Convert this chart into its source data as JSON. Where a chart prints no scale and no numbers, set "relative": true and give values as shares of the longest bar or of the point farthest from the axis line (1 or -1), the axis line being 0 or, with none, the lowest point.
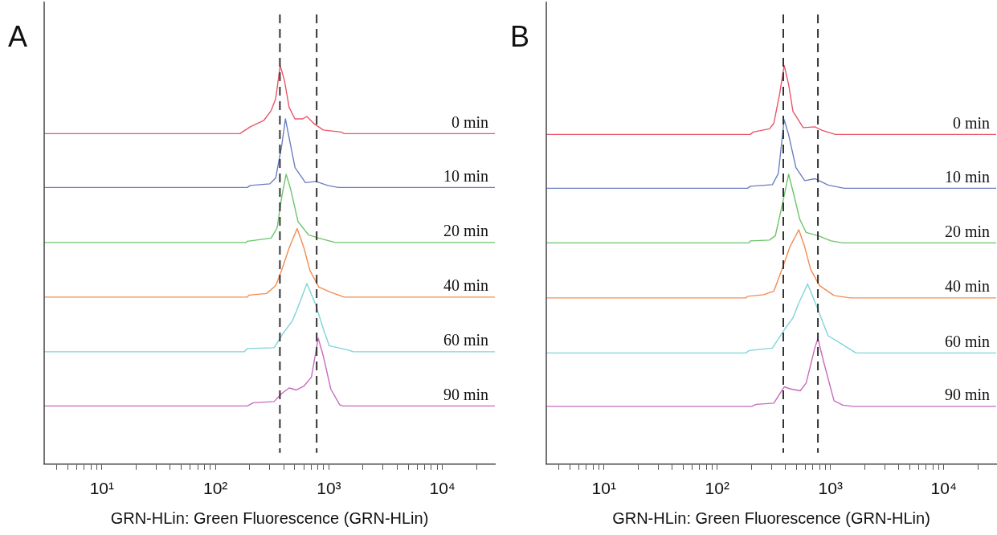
{
  "chart_data": [
    {
      "type": "line",
      "title": "A",
      "xlabel": "GRN-HLin: Green Fluorescence (GRN-HLin)",
      "log": "x",
      "relative": true,
      "grid": false,
      "legend": false,
      "marker": "none",
      "xlim": [
        3.1,
        29000
      ],
      "xticks": [
        {
          "value": 4,
          "label": null
        },
        {
          "value": 5,
          "label": null
        },
        {
          "value": 6,
          "label": null
        },
        {
          "value": 7,
          "label": null
        },
        {
          "value": 8,
          "label": null
        },
        {
          "value": 9,
          "label": null
        },
        {
          "value": 10,
          "label": "10¹"
        },
        {
          "value": 20,
          "label": null
        },
        {
          "value": 30,
          "label": null
        },
        {
          "value": 40,
          "label": null
        },
        {
          "value": 50,
          "label": null
        },
        {
          "value": 60,
          "label": null
        },
        {
          "value": 70,
          "label": null
        },
        {
          "value": 80,
          "label": null
        },
        {
          "value": 90,
          "label": null
        },
        {
          "value": 100,
          "label": "10²"
        },
        {
          "value": 200,
          "label": null
        },
        {
          "value": 300,
          "label": null
        },
        {
          "value": 400,
          "label": null
        },
        {
          "value": 500,
          "label": null
        },
        {
          "value": 600,
          "label": null
        },
        {
          "value": 700,
          "label": null
        },
        {
          "value": 800,
          "label": null
        },
        {
          "value": 900,
          "label": null
        },
        {
          "value": 1000,
          "label": "10³"
        },
        {
          "value": 2000,
          "label": null
        },
        {
          "value": 3000,
          "label": null
        },
        {
          "value": 4000,
          "label": null
        },
        {
          "value": 5000,
          "label": null
        },
        {
          "value": 6000,
          "label": null
        },
        {
          "value": 7000,
          "label": null
        },
        {
          "value": 8000,
          "label": null
        },
        {
          "value": 9000,
          "label": null
        },
        {
          "value": 10000,
          "label": "10⁴"
        },
        {
          "value": 20000,
          "label": null
        }
      ],
      "ref_lines": [
        {
          "axis": "x",
          "value": 370,
          "color": "#333333",
          "line_style": "dashed"
        },
        {
          "axis": "x",
          "value": 780,
          "color": "#333333",
          "line_style": "dashed"
        }
      ],
      "series": [
        {
          "name": "0 min",
          "color": "#e8566a",
          "x": [
            3.1,
            164,
            203,
            267,
            310,
            340,
            372,
            406,
            446,
            502,
            585,
            640,
            745,
            893,
            1282,
            1365,
            29000
          ],
          "values": [
            0.829,
            0.829,
            0.846,
            0.862,
            0.887,
            0.917,
            1.0,
            0.962,
            0.895,
            0.866,
            0.866,
            0.872,
            0.853,
            0.838,
            0.833,
            0.829,
            0.829
          ]
        },
        {
          "name": "10 min",
          "color": "#6a7fc2",
          "x": [
            3.1,
            191,
            203,
            301,
            340,
            383,
            414,
            446,
            503,
            621,
            767,
            977,
            1208,
            29000
          ],
          "values": [
            0.694,
            0.694,
            0.699,
            0.703,
            0.718,
            0.797,
            0.866,
            0.819,
            0.744,
            0.706,
            0.709,
            0.699,
            0.694,
            0.694
          ]
        },
        {
          "name": "20 min",
          "color": "#6cc36a",
          "x": [
            3.1,
            185,
            191,
            310,
            350,
            383,
            420,
            459,
            535,
            661,
            815,
            1138,
            29000
          ],
          "values": [
            0.556,
            0.556,
            0.559,
            0.567,
            0.593,
            0.669,
            0.727,
            0.691,
            0.608,
            0.575,
            0.567,
            0.556,
            0.556
          ]
        },
        {
          "name": "40 min",
          "color": "#f28b52",
          "x": [
            3.1,
            191,
            197,
            283,
            340,
            383,
            446,
            525,
            603,
            680,
            815,
            1040,
            1365,
            29000
          ],
          "values": [
            0.419,
            0.419,
            0.424,
            0.428,
            0.448,
            0.486,
            0.542,
            0.591,
            0.542,
            0.486,
            0.444,
            0.431,
            0.419,
            0.419
          ]
        },
        {
          "name": "60 min",
          "color": "#7fd3da",
          "x": [
            3.1,
            180,
            191,
            329,
            394,
            473,
            518,
            640,
            767,
            893,
            1007,
            1493,
            1637,
            29000
          ],
          "values": [
            0.282,
            0.282,
            0.29,
            0.292,
            0.328,
            0.358,
            0.384,
            0.453,
            0.399,
            0.339,
            0.297,
            0.286,
            0.282,
            0.282
          ]
        },
        {
          "name": "90 min",
          "color": "#c76bbf",
          "x": [
            3.1,
            191,
            216,
            329,
            383,
            446,
            518,
            603,
            701,
            805,
            893,
            1040,
            1245,
            1324,
            29000
          ],
          "values": [
            0.146,
            0.146,
            0.154,
            0.157,
            0.177,
            0.191,
            0.186,
            0.196,
            0.218,
            0.316,
            0.271,
            0.188,
            0.149,
            0.146,
            0.146
          ]
        }
      ]
    },
    {
      "type": "line",
      "title": "B",
      "xlabel": "GRN-HLin: Green Fluorescence (GRN-HLin)",
      "log": "x",
      "relative": true,
      "grid": false,
      "legend": false,
      "marker": "none",
      "xlim": [
        3.1,
        29000
      ],
      "xticks": [
        {
          "value": 4,
          "label": null
        },
        {
          "value": 5,
          "label": null
        },
        {
          "value": 6,
          "label": null
        },
        {
          "value": 7,
          "label": null
        },
        {
          "value": 8,
          "label": null
        },
        {
          "value": 9,
          "label": null
        },
        {
          "value": 10,
          "label": "10¹"
        },
        {
          "value": 20,
          "label": null
        },
        {
          "value": 30,
          "label": null
        },
        {
          "value": 40,
          "label": null
        },
        {
          "value": 50,
          "label": null
        },
        {
          "value": 60,
          "label": null
        },
        {
          "value": 70,
          "label": null
        },
        {
          "value": 80,
          "label": null
        },
        {
          "value": 90,
          "label": null
        },
        {
          "value": 100,
          "label": "10²"
        },
        {
          "value": 200,
          "label": null
        },
        {
          "value": 300,
          "label": null
        },
        {
          "value": 400,
          "label": null
        },
        {
          "value": 500,
          "label": null
        },
        {
          "value": 600,
          "label": null
        },
        {
          "value": 700,
          "label": null
        },
        {
          "value": 800,
          "label": null
        },
        {
          "value": 900,
          "label": null
        },
        {
          "value": 1000,
          "label": "10³"
        },
        {
          "value": 2000,
          "label": null
        },
        {
          "value": 3000,
          "label": null
        },
        {
          "value": 4000,
          "label": null
        },
        {
          "value": 5000,
          "label": null
        },
        {
          "value": 6000,
          "label": null
        },
        {
          "value": 7000,
          "label": null
        },
        {
          "value": 8000,
          "label": null
        },
        {
          "value": 9000,
          "label": null
        },
        {
          "value": 10000,
          "label": "10⁴"
        },
        {
          "value": 20000,
          "label": null
        }
      ],
      "ref_lines": [
        {
          "axis": "x",
          "value": 383,
          "color": "#333333",
          "line_style": "dashed"
        },
        {
          "axis": "x",
          "value": 774,
          "color": "#333333",
          "line_style": "dashed"
        }
      ],
      "series": [
        {
          "name": "0 min",
          "color": "#e8566a",
          "x": [
            3.1,
            196,
            208,
            289,
            316,
            356,
            390,
            427,
            466,
            574,
            729,
            846,
            1107,
            29000
          ],
          "values": [
            0.827,
            0.827,
            0.833,
            0.841,
            0.855,
            0.929,
            1.0,
            0.952,
            0.885,
            0.844,
            0.846,
            0.837,
            0.827,
            0.827
          ]
        },
        {
          "name": "10 min",
          "color": "#6a7fc2",
          "x": [
            3.1,
            185,
            196,
            307,
            346,
            390,
            427,
            495,
            592,
            729,
            953,
            1324,
            29000
          ],
          "values": [
            0.692,
            0.692,
            0.697,
            0.701,
            0.729,
            0.864,
            0.826,
            0.744,
            0.711,
            0.716,
            0.7,
            0.692,
            0.692
          ]
        },
        {
          "name": "20 min",
          "color": "#6cc36a",
          "x": [
            3.1,
            191,
            196,
            289,
            326,
            378,
            427,
            480,
            535,
            610,
            774,
            1012,
            1285,
            29000
          ],
          "values": [
            0.555,
            0.555,
            0.56,
            0.562,
            0.573,
            0.655,
            0.727,
            0.67,
            0.614,
            0.581,
            0.573,
            0.56,
            0.555,
            0.555
          ]
        },
        {
          "name": "40 min",
          "color": "#f28b52",
          "x": [
            3.1,
            180,
            185,
            257,
            316,
            378,
            438,
            525,
            592,
            667,
            798,
            1074,
            1493,
            29000
          ],
          "values": [
            0.417,
            0.417,
            0.421,
            0.425,
            0.434,
            0.493,
            0.545,
            0.588,
            0.545,
            0.489,
            0.448,
            0.423,
            0.417,
            0.417
          ]
        },
        {
          "name": "60 min",
          "color": "#7fd3da",
          "x": [
            3.1,
            180,
            191,
            307,
            390,
            466,
            525,
            628,
            752,
            953,
            1211,
            1679,
            29000
          ],
          "values": [
            0.279,
            0.279,
            0.285,
            0.291,
            0.337,
            0.367,
            0.404,
            0.452,
            0.397,
            0.322,
            0.304,
            0.279,
            0.279
          ]
        },
        {
          "name": "90 min",
          "color": "#c76bbf",
          "x": [
            3.1,
            202,
            221,
            316,
            390,
            438,
            541,
            610,
            729,
            774,
            871,
            1074,
            1285,
            1585,
            29000
          ],
          "values": [
            0.145,
            0.145,
            0.15,
            0.153,
            0.194,
            0.189,
            0.184,
            0.204,
            0.293,
            0.315,
            0.256,
            0.159,
            0.148,
            0.145,
            0.145
          ]
        }
      ]
    }
  ]
}
